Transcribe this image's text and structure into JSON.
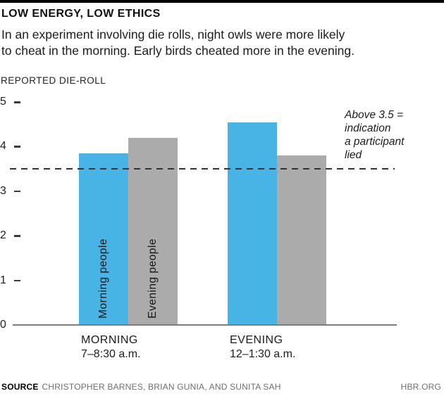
{
  "colors": {
    "blue": "#47B4E5",
    "gray": "#ABABAB",
    "dashed_line": "#333333",
    "axis_line": "#7D7D7D",
    "top_bar": "#000000",
    "muted_text": "#6E6E6E"
  },
  "header": {
    "title": "LOW ENERGY, LOW ETHICS",
    "subtitle_lines": [
      "In an experiment involving die rolls, night owls were more likely",
      "to cheat in the morning. Early birds cheated more in the evening."
    ]
  },
  "chart_data": {
    "type": "bar",
    "title": "LOW ENERGY, LOW ETHICS",
    "ylabel": "REPORTED DIE-ROLL",
    "xlabel": "",
    "ylim": [
      0,
      5
    ],
    "y_ticks": [
      5,
      4,
      3,
      2,
      1,
      0
    ],
    "grid": false,
    "legend_position": "in-bar-rotated-labels",
    "categories": [
      "MORNING",
      "EVENING"
    ],
    "category_times": [
      "7–8:30 a.m.",
      "12–1:30 a.m."
    ],
    "series": [
      {
        "name": "Morning people",
        "color": "#47B4E5",
        "values": [
          3.85,
          4.55
        ]
      },
      {
        "name": "Evening people",
        "color": "#ABABAB",
        "values": [
          4.2,
          3.8
        ]
      }
    ],
    "reference_line": {
      "value": 3.5,
      "style": "dashed",
      "annotation_lines": [
        "Above 3.5 =",
        "indication",
        "a participant",
        "lied"
      ]
    }
  },
  "footer": {
    "source_label": "SOURCE",
    "source_names": "CHRISTOPHER BARNES, BRIAN GUNIA, AND SUNITA SAH",
    "brand": "HBR.ORG"
  }
}
